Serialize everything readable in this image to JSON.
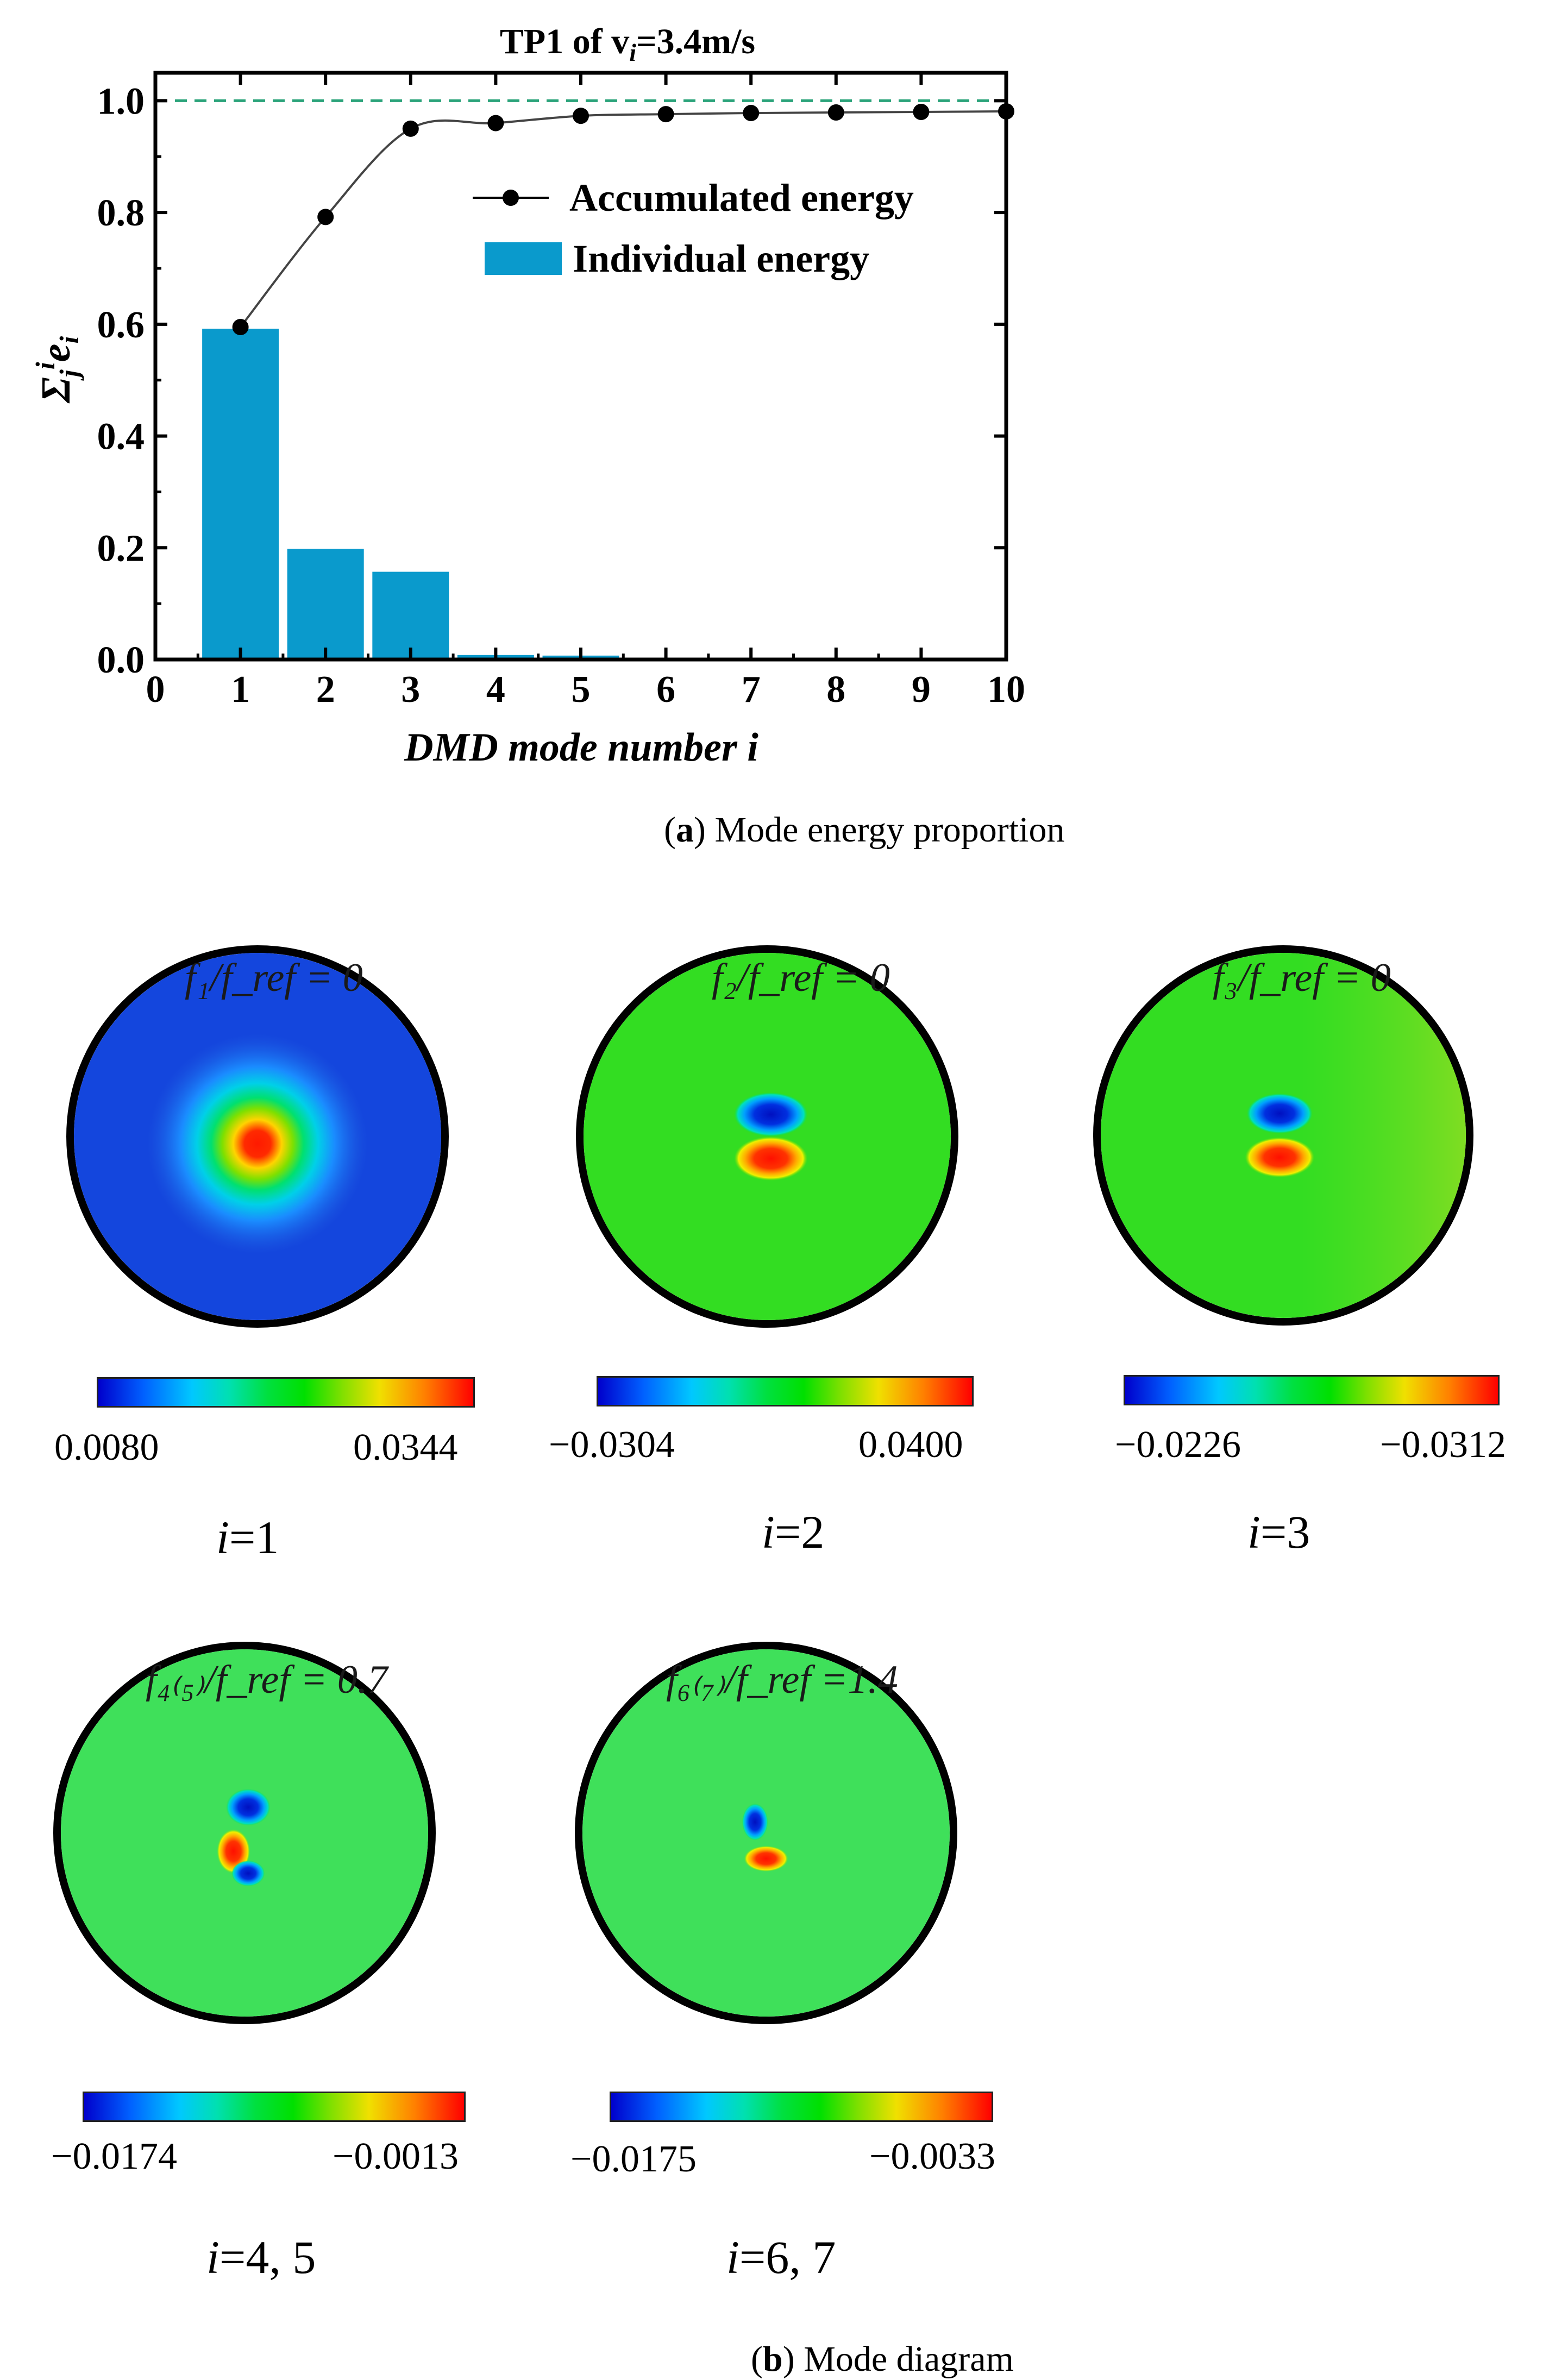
{
  "chart_data": {
    "type": "bar",
    "title": "TP1 of v",
    "title_sub": "i",
    "title_suffix": "=3.4m/s",
    "xlabel": "DMD mode number i",
    "ylabel": "Σ",
    "ylabel_sub": "j",
    "ylabel_sup": "i",
    "ylabel_e": "e",
    "ylabel_e_sub": "i",
    "xlim": [
      0,
      10
    ],
    "ylim": [
      0,
      1.05
    ],
    "x_ticks": [
      "0",
      "1",
      "2",
      "3",
      "4",
      "5",
      "6",
      "7",
      "8",
      "9",
      "10"
    ],
    "y_ticks": [
      "0.0",
      "0.2",
      "0.4",
      "0.6",
      "0.8",
      "1.0"
    ],
    "reference_line": 1.0,
    "series": [
      {
        "name": "Individual energy",
        "kind": "bar",
        "color": "#0a9acc",
        "x": [
          1,
          2,
          3,
          4,
          5
        ],
        "values": [
          0.592,
          0.198,
          0.157,
          0.008,
          0.007
        ]
      },
      {
        "name": "Accumulated energy",
        "kind": "line",
        "color": "#000000",
        "x": [
          1,
          2,
          3,
          4,
          5,
          6,
          7,
          8,
          9,
          10
        ],
        "values": [
          0.595,
          0.792,
          0.95,
          0.96,
          0.973,
          0.976,
          0.978,
          0.979,
          0.98,
          0.981
        ]
      }
    ],
    "legend_position": "top-right"
  },
  "captions": {
    "a_letter": "a",
    "a_text": " Mode energy proportion",
    "b_letter": "b",
    "b_text": " Mode diagram"
  },
  "modes": [
    {
      "freq": "f₁/f_ref = 0",
      "cmin": "0.0080",
      "cmax": "0.0344",
      "label_i": "i",
      "label_rest": "=1"
    },
    {
      "freq": "f₂/f_ref = 0",
      "cmin": "−0.0304",
      "cmax": "0.0400",
      "label_i": "i",
      "label_rest": "=2"
    },
    {
      "freq": "f₃/f_ref = 0",
      "cmin": "−0.0226",
      "cmax": "−0.0312",
      "label_i": "i",
      "label_rest": "=3"
    },
    {
      "freq": "f₄₍₅₎/f_ref = 0.7",
      "cmin": "−0.0174",
      "cmax": "−0.0013",
      "label_i": "i",
      "label_rest": "=4, 5"
    },
    {
      "freq": "f₆₍₇₎/f_ref =1.4",
      "cmin": "−0.0175",
      "cmax": "−0.0033",
      "label_i": "i",
      "label_rest": "=6, 7"
    }
  ],
  "colors": {
    "bar": "#0a9acc",
    "ref_line": "#2aa37a",
    "field_green": "#33dd22",
    "field_blue": "#1446dd"
  }
}
